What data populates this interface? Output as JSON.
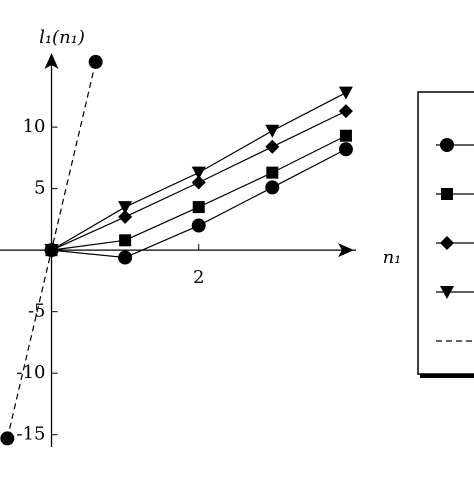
{
  "chart_data": {
    "type": "line",
    "x_label": "n₁",
    "y_label": "l₁(n₁)",
    "xlim": [
      -0.7,
      4.3
    ],
    "ylim": [
      -16,
      17
    ],
    "xticks": [
      2
    ],
    "yticks": [
      -15,
      -10,
      -5,
      5,
      10
    ],
    "legend": "right",
    "series": [
      {
        "color": "#000000",
        "marker": "circle",
        "dash": false,
        "x": [
          0,
          1,
          2,
          3,
          4
        ],
        "values": [
          0,
          -0.6,
          2.0,
          5.1,
          8.2
        ]
      },
      {
        "color": "#000000",
        "marker": "square",
        "dash": false,
        "x": [
          0,
          1,
          2,
          3,
          4
        ],
        "values": [
          0,
          0.8,
          3.5,
          6.3,
          9.3
        ]
      },
      {
        "color": "#000000",
        "marker": "diamond",
        "dash": false,
        "x": [
          0,
          1,
          2,
          3,
          4
        ],
        "values": [
          0,
          2.7,
          5.5,
          8.4,
          11.3
        ]
      },
      {
        "color": "#000000",
        "marker": "triangle",
        "dash": false,
        "x": [
          0,
          1,
          2,
          3,
          4
        ],
        "values": [
          0,
          3.5,
          6.3,
          9.7,
          12.8
        ]
      },
      {
        "color": "#000000",
        "marker": "circle",
        "dash": true,
        "x": [
          -0.6,
          0.6
        ],
        "values": [
          -15.3,
          15.3
        ]
      }
    ]
  }
}
